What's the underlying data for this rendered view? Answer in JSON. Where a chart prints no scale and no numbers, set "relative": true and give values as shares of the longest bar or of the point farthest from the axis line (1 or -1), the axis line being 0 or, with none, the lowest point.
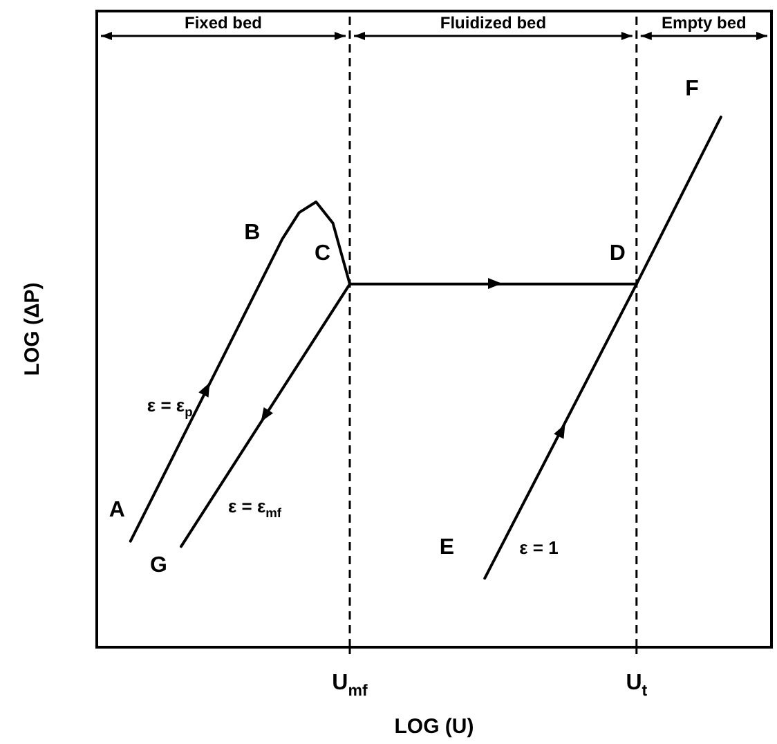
{
  "chart_data": {
    "type": "line",
    "xlabel": "LOG (U)",
    "ylabel": "LOG (ΔP)",
    "relative": true,
    "categories": [
      null,
      null,
      null,
      null,
      null,
      null,
      null,
      null,
      null,
      null,
      null,
      null,
      null,
      null,
      null,
      "U$_{mf}$",
      null,
      null,
      null,
      null,
      null,
      null,
      null,
      null,
      null,
      null,
      null,
      null,
      null,
      null,
      null,
      null,
      "U$_{t}$",
      null,
      null,
      null,
      null,
      null,
      null,
      null,
      null
    ],
    "tick_labels": "x",
    "legend": false,
    "marker": "none",
    "ref_lines": [
      {
        "axis": "x",
        "value": "U$_{mf}$",
        "label": null,
        "line_style": "dashed"
      },
      {
        "axis": "x",
        "value": "U$_{t}$",
        "label": null,
        "line_style": "dashed"
      }
    ],
    "series": [
      {
        "color": "#000000",
        "values": [
          null,
          null,
          0.2,
          null,
          null,
          null,
          null,
          null,
          null,
          null,
          null,
          0.77,
          0.82,
          0.84,
          0.8,
          0.685,
          null,
          null,
          null,
          null,
          null,
          null,
          null,
          null,
          null,
          null,
          null,
          null,
          null,
          null,
          null,
          null,
          null,
          null,
          null,
          null,
          null,
          null,
          null,
          null,
          null
        ]
      },
      {
        "color": "#000000",
        "values": [
          null,
          null,
          null,
          null,
          null,
          0.19,
          null,
          null,
          null,
          null,
          null,
          null,
          null,
          null,
          null,
          0.685,
          null,
          null,
          null,
          null,
          null,
          null,
          null,
          null,
          null,
          null,
          null,
          null,
          null,
          null,
          null,
          null,
          null,
          null,
          null,
          null,
          null,
          null,
          null,
          null,
          null
        ]
      },
      {
        "color": "#000000",
        "values": [
          null,
          null,
          null,
          null,
          null,
          null,
          null,
          null,
          null,
          null,
          null,
          null,
          null,
          null,
          null,
          0.685,
          null,
          null,
          null,
          null,
          null,
          null,
          null,
          null,
          null,
          null,
          null,
          null,
          null,
          null,
          null,
          null,
          0.685,
          null,
          null,
          null,
          null,
          null,
          null,
          null,
          null
        ]
      },
      {
        "color": "#000000",
        "values": [
          null,
          null,
          null,
          null,
          null,
          null,
          null,
          null,
          null,
          null,
          null,
          null,
          null,
          null,
          null,
          null,
          null,
          null,
          null,
          null,
          null,
          null,
          null,
          0.13,
          null,
          null,
          null,
          null,
          null,
          null,
          null,
          null,
          0.685,
          null,
          null,
          null,
          null,
          1,
          null,
          null,
          null
        ]
      }
    ],
    "annotations": [
      "Fixed bed",
      "Fluidized bed",
      "Empty bed",
      "A",
      "B",
      "C",
      "D",
      "E",
      "F",
      "G",
      "ε = ε$_{p}$",
      "ε = ε$_{mf}$",
      "ε = 1"
    ]
  }
}
